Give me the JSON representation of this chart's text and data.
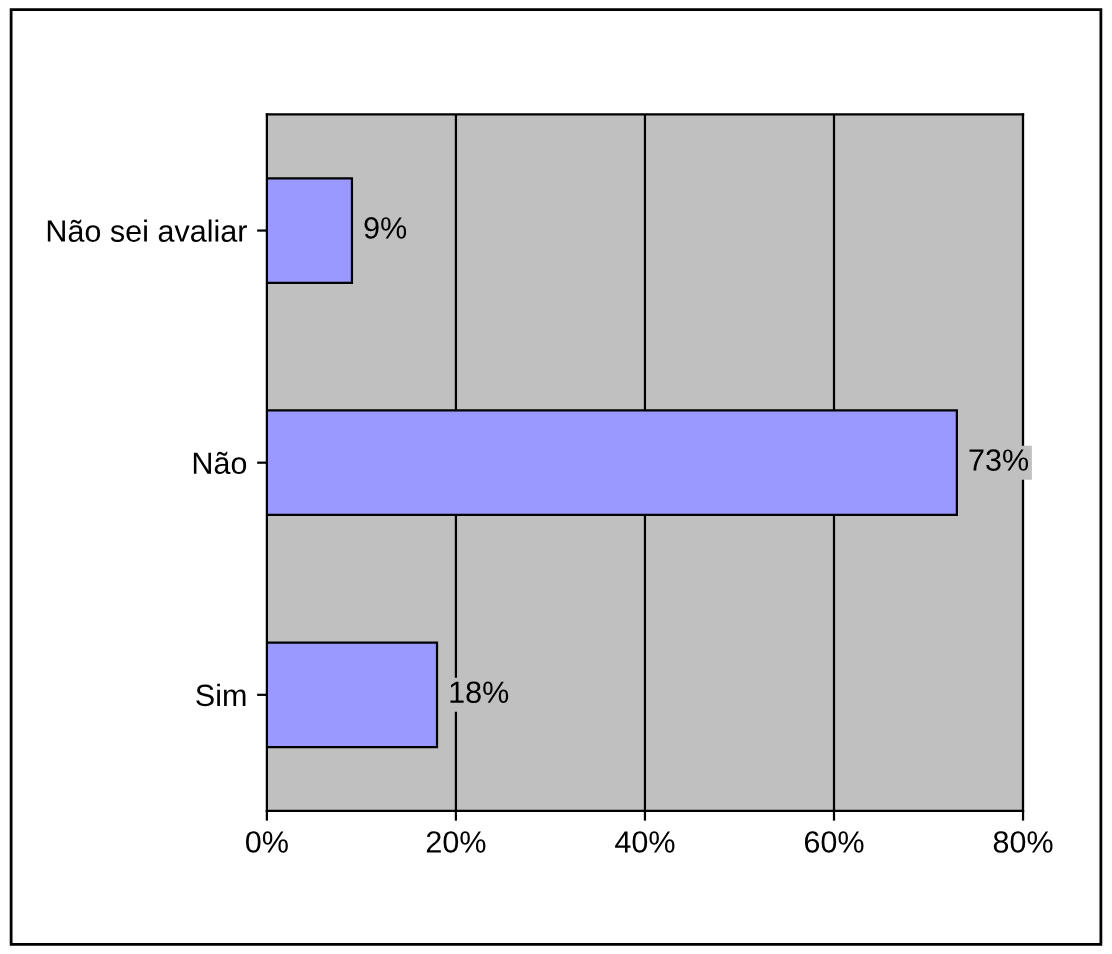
{
  "chart_data": {
    "type": "bar",
    "orientation": "horizontal",
    "categories": [
      "Não sei avaliar",
      "Não",
      "Sim"
    ],
    "values": [
      9,
      73,
      18
    ],
    "color": "#9999ff",
    "value_labels": [
      "9%",
      "73%",
      "18%"
    ],
    "xlim": [
      0,
      80
    ],
    "xticks": [
      {
        "value": 0,
        "label": "0%"
      },
      {
        "value": 20,
        "label": "20%"
      },
      {
        "value": 40,
        "label": "40%"
      },
      {
        "value": 60,
        "label": "60%"
      },
      {
        "value": 80,
        "label": "80%"
      }
    ],
    "grid": "x",
    "legend": false
  }
}
